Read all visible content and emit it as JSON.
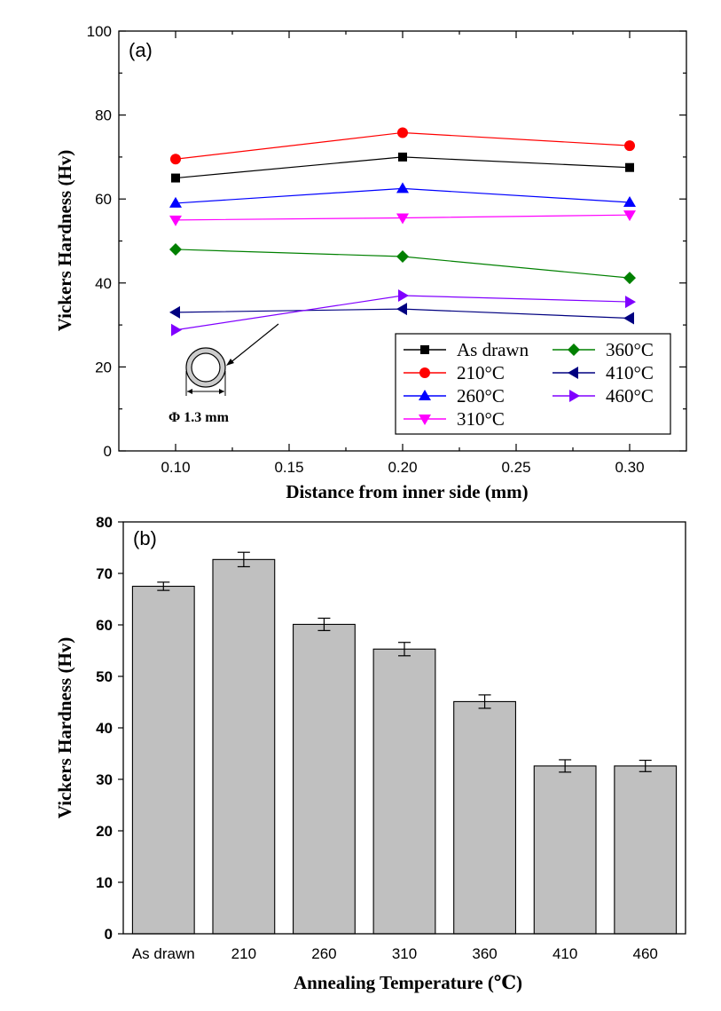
{
  "chart_data": [
    {
      "type": "line",
      "panel_label": "(a)",
      "xlabel": "Distance from inner side (mm)",
      "ylabel": "Vickers Hardness (Hv)",
      "xlim": [
        0.075,
        0.325
      ],
      "ylim": [
        0,
        100
      ],
      "x": [
        0.1,
        0.2,
        0.3
      ],
      "x_ticks": [
        "0.10",
        "0.15",
        "0.20",
        "0.25",
        "0.30"
      ],
      "y_ticks": [
        "0",
        "20",
        "40",
        "60",
        "80",
        "100"
      ],
      "grid": false,
      "legend_position": "bottom-right",
      "series": [
        {
          "name": "As drawn",
          "values": [
            65.0,
            70.0,
            67.5
          ],
          "color": "#000000",
          "marker": "square"
        },
        {
          "name": "210°C",
          "values": [
            69.5,
            75.8,
            72.7
          ],
          "color": "#ff0000",
          "marker": "circle"
        },
        {
          "name": "260°C",
          "values": [
            59.0,
            62.5,
            59.2
          ],
          "color": "#0000ff",
          "marker": "triangle-up"
        },
        {
          "name": "310°C",
          "values": [
            55.0,
            55.5,
            56.2
          ],
          "color": "#ff00ff",
          "marker": "triangle-down"
        },
        {
          "name": "360°C",
          "values": [
            48.0,
            46.3,
            41.2
          ],
          "color": "#008000",
          "marker": "diamond"
        },
        {
          "name": "410°C",
          "values": [
            33.0,
            33.8,
            31.6
          ],
          "color": "#000080",
          "marker": "triangle-left"
        },
        {
          "name": "460°C",
          "values": [
            28.8,
            37.0,
            35.5
          ],
          "color": "#8000ff",
          "marker": "triangle-right"
        }
      ],
      "inset_annotation": "Φ 1.3 mm"
    },
    {
      "type": "bar",
      "panel_label": "(b)",
      "xlabel": "Annealing Temperature (℃)",
      "ylabel": "Vickers Hardness (Hv)",
      "ylim": [
        0,
        80
      ],
      "y_ticks": [
        "0",
        "10",
        "20",
        "30",
        "40",
        "50",
        "60",
        "70",
        "80"
      ],
      "categories": [
        "As drawn",
        "210",
        "260",
        "310",
        "360",
        "410",
        "460"
      ],
      "values": [
        67.5,
        72.7,
        60.1,
        55.3,
        45.1,
        32.6,
        32.6
      ],
      "errors": [
        0.8,
        1.4,
        1.2,
        1.3,
        1.3,
        1.2,
        1.1
      ],
      "bar_color": "#c0c0c0",
      "grid": false
    }
  ]
}
